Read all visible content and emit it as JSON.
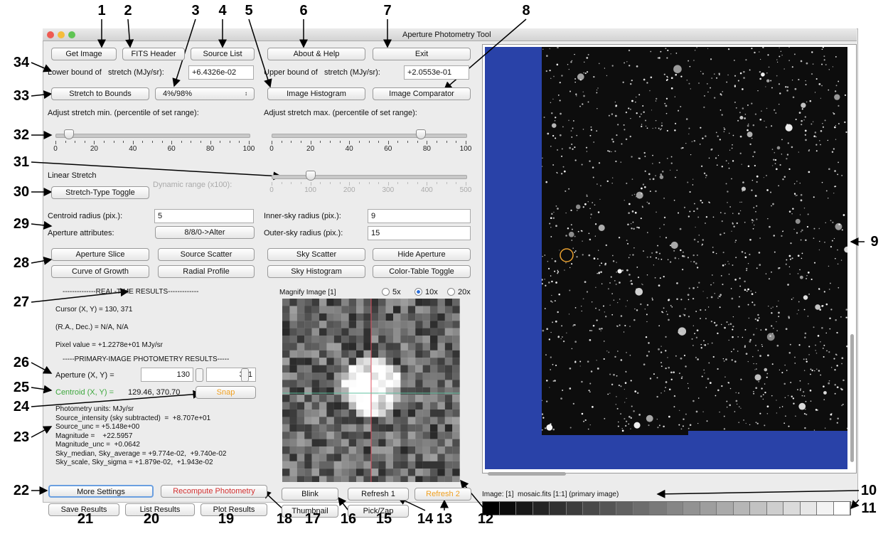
{
  "window": {
    "title": "Aperture Photometry Tool"
  },
  "top_buttons": [
    "Get Image",
    "FITS Header",
    "Source List",
    "About & Help",
    "Exit"
  ],
  "stretch": {
    "lower_label": "Lower bound of   stretch (MJy/sr):",
    "lower_value": "+6.4326e-02",
    "upper_label": "Upper bound of   stretch (MJy/sr):",
    "upper_value": "+2.0553e-01"
  },
  "stretch_row": {
    "stretch_button": "Stretch to Bounds",
    "dropdown": "4%/98%",
    "histogram": "Image Histogram",
    "comparator": "Image Comparator"
  },
  "sliders": [
    {
      "label": "Adjust stretch min. (percentile of set range):",
      "ticks": [
        0,
        20,
        40,
        60,
        80,
        100
      ],
      "value": 7
    },
    {
      "label": "Adjust stretch max. (percentile of set range):",
      "ticks": [
        0,
        20,
        40,
        60,
        80,
        100
      ],
      "value": 77
    },
    {
      "label": "Dynamic range (x100):",
      "ticks": [
        0,
        100,
        200,
        300,
        400,
        500
      ],
      "value": 100
    }
  ],
  "linear_stretch": "Linear Stretch",
  "stretch_toggle": "Stretch-Type Toggle",
  "aperture_params": {
    "centroid_label": "Centroid radius (pix.):",
    "centroid_value": "5",
    "inner_label": "Inner-sky radius (pix.):",
    "inner_value": "9",
    "attributes_label": "Aperture attributes:",
    "attributes_button": "8/8/0->Alter",
    "outer_label": "Outer-sky radius (pix.):",
    "outer_value": "15"
  },
  "tool_buttons": [
    "Aperture Slice",
    "Source Scatter",
    "Sky Scatter",
    "Hide Aperture",
    "Curve of Growth",
    "Radial Profile",
    "Sky Histogram",
    "Color-Table Toggle"
  ],
  "realtime": {
    "header": "--------------REAL-TIME RESULTS-------------",
    "cursor": "Cursor (X, Y) = 130, 371",
    "radec": "(R.A., Dec.) = N/A, N/A",
    "pixel": "Pixel value = +1.2278e+01 MJy/sr"
  },
  "primary": {
    "header": "-----PRIMARY-IMAGE PHOTOMETRY RESULTS-----",
    "aperture_label": "Aperture (X, Y) =",
    "aperture_x": 130,
    "aperture_y": 371,
    "centroid_label": "Centroid (X, Y) =",
    "centroid_value": "129.46, 370.70",
    "snap": "Snap",
    "lines": [
      "Photometry units: MJy/sr",
      "Source_intensity (sky subtracted)  =  +8.707e+01",
      "Source_unc = +5.148e+00",
      "Magnitude =    +22.5957",
      "Magnitude_unc =  +0.0642",
      "Sky_median, Sky_average = +9.774e-02,  +9.740e-02",
      "Sky_scale, Sky_sigma = +1.879e-02,  +1.943e-02"
    ]
  },
  "magnify": {
    "title": "Magnify Image [1]",
    "options": [
      "5x",
      "10x",
      "20x"
    ],
    "selected": 1
  },
  "bottom_buttons": {
    "more_settings": "More Settings",
    "recompute": "Recompute Photometry",
    "save": "Save Results",
    "list": "List Results",
    "plot": "Plot Results",
    "blink": "Blink",
    "refresh1": "Refresh 1",
    "refresh2": "Refresh 2",
    "thumbnail": "Thumbnail",
    "pickzap": "Pick/Zap"
  },
  "image_status": "Image: [1]  mosaic.fits [1:1] (primary image)",
  "callouts": [
    1,
    2,
    3,
    4,
    5,
    6,
    7,
    8,
    9,
    10,
    11,
    12,
    13,
    14,
    15,
    16,
    17,
    18,
    19,
    20,
    21,
    22,
    23,
    24,
    25,
    26,
    27,
    28,
    29,
    30,
    31,
    32,
    33,
    34
  ]
}
